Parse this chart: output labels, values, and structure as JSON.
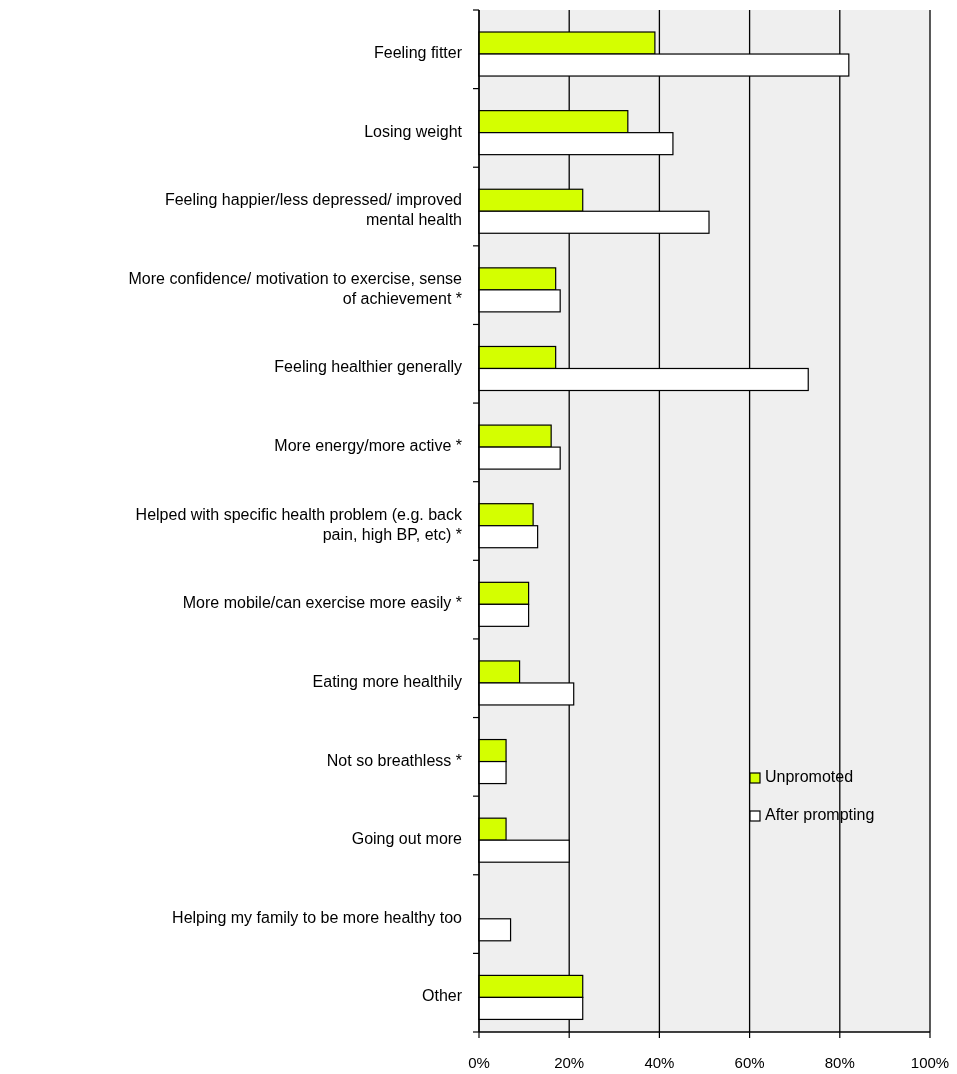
{
  "chart_data": {
    "type": "bar",
    "orientation": "horizontal",
    "categories": [
      "Feeling fitter",
      "Losing weight",
      "Feeling happier/less depressed/ improved mental health",
      "More confidence/ motivation to exercise, sense of achievement *",
      "Feeling healthier generally",
      "More energy/more active *",
      "Helped with specific health problem (e.g. back pain, high BP, etc) *",
      "More mobile/can exercise more easily *",
      "Eating more healthily",
      "Not so breathless *",
      "Going out more",
      "Helping my family to be more healthy too",
      "Other"
    ],
    "series": [
      {
        "name": "Unpromoted",
        "color": "#d4ff00",
        "values": [
          39,
          33,
          23,
          17,
          17,
          16,
          12,
          11,
          9,
          6,
          6,
          null,
          23
        ]
      },
      {
        "name": "After prompting",
        "color": "#ffffff",
        "values": [
          82,
          43,
          51,
          18,
          73,
          18,
          13,
          11,
          21,
          6,
          20,
          7,
          23
        ]
      }
    ],
    "xlim": [
      0,
      100
    ],
    "xticks": [
      {
        "value": 0,
        "label": "0%"
      },
      {
        "value": 20,
        "label": "20%"
      },
      {
        "value": 40,
        "label": "40%"
      },
      {
        "value": 60,
        "label": "60%"
      },
      {
        "value": 80,
        "label": "80%"
      },
      {
        "value": 100,
        "label": "100%"
      }
    ],
    "grid": "x",
    "legend": "right"
  }
}
